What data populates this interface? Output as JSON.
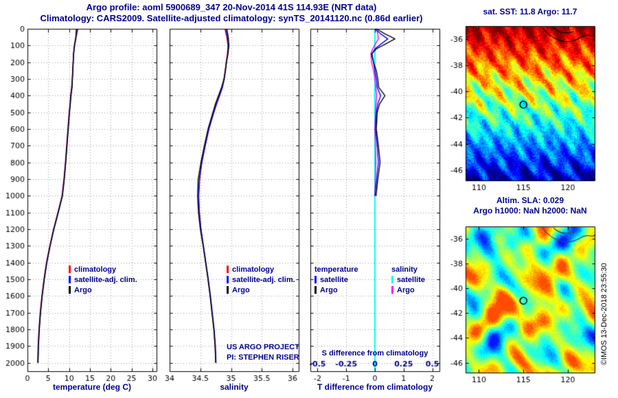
{
  "header": {
    "title_line1": "Argo profile: aoml 5900689_347 20-Nov-2014 41S 114.93E (NRT data)",
    "title_line2": "Climatology: CARS2009. Satellite-adjusted climatology: synTS_20141120.nc (0.86d earlier)"
  },
  "watermark": "©IMOS 13-Dec-2018 23:55:30",
  "colors": {
    "navy": "#00008b",
    "tick": "#000000",
    "background": "#ffffff"
  },
  "chart_data": [
    {
      "id": "temperature-profile",
      "type": "line",
      "xlabel": "temperature (deg C)",
      "xlim": [
        0,
        31
      ],
      "xticks": [
        0,
        5,
        10,
        15,
        20,
        25,
        30
      ],
      "ylim": [
        0,
        2050
      ],
      "yticks": [
        0,
        100,
        200,
        300,
        400,
        500,
        600,
        700,
        800,
        900,
        1000,
        1100,
        1200,
        1300,
        1400,
        1500,
        1600,
        1700,
        1800,
        1900,
        2000
      ],
      "grid": true,
      "depths": [
        0,
        50,
        100,
        150,
        200,
        250,
        300,
        350,
        400,
        450,
        500,
        600,
        700,
        800,
        900,
        1000,
        1100,
        1200,
        1300,
        1400,
        1500,
        1600,
        1700,
        1800,
        1900,
        2000
      ],
      "series": [
        {
          "name": "climatology",
          "color": "#ff0000",
          "values": [
            12.1,
            11.7,
            11.35,
            11.1,
            10.95,
            10.85,
            10.75,
            10.6,
            10.35,
            10.2,
            10.0,
            9.7,
            9.4,
            9.1,
            8.75,
            8.3,
            7.3,
            6.25,
            5.35,
            4.55,
            3.95,
            3.45,
            3.05,
            2.75,
            2.55,
            2.45
          ]
        },
        {
          "name": "satellite-adj. clim.",
          "color": "#0000ff",
          "values": [
            11.95,
            11.65,
            11.3,
            11.08,
            10.97,
            10.87,
            10.77,
            10.65,
            10.4,
            10.25,
            10.05,
            9.75,
            9.45,
            9.15,
            8.8,
            8.35,
            7.35,
            6.3,
            5.4,
            4.6,
            4.0,
            3.5,
            3.1,
            2.8,
            2.6,
            2.5
          ]
        },
        {
          "name": "Argo",
          "color": "#000000",
          "values": [
            11.75,
            11.6,
            11.25,
            11.05,
            11.0,
            10.9,
            10.8,
            10.72,
            10.45,
            10.3,
            10.1,
            9.8,
            9.5,
            9.2,
            8.85,
            8.4,
            7.4,
            6.35,
            5.45,
            4.65,
            4.05,
            3.55,
            3.15,
            2.85,
            2.65,
            2.55
          ]
        }
      ]
    },
    {
      "id": "salinity-profile",
      "type": "line",
      "xlabel": "salinity",
      "xlim": [
        34,
        36.1
      ],
      "xticks": [
        34,
        34.5,
        35,
        35.5,
        36
      ],
      "grid": true,
      "notes": [
        "US ARGO PROJECT",
        "PI: STEPHEN RISER"
      ],
      "series": [
        {
          "name": "climatology",
          "color": "#ff0000",
          "values": [
            34.9,
            34.93,
            34.95,
            34.94,
            34.92,
            34.905,
            34.885,
            34.855,
            34.805,
            34.755,
            34.715,
            34.635,
            34.575,
            34.52,
            34.49,
            34.475,
            34.485,
            34.51,
            34.55,
            34.59,
            34.625,
            34.66,
            34.69,
            34.72,
            34.74,
            34.75
          ]
        },
        {
          "name": "satellite-adj. clim.",
          "color": "#0000ff",
          "values": [
            34.91,
            34.94,
            34.955,
            34.945,
            34.925,
            34.91,
            34.89,
            34.86,
            34.815,
            34.765,
            34.72,
            34.64,
            34.58,
            34.525,
            34.485,
            34.47,
            34.48,
            34.51,
            34.55,
            34.59,
            34.63,
            34.665,
            34.695,
            34.725,
            34.745,
            34.755
          ]
        },
        {
          "name": "Argo",
          "color": "#000000",
          "values": [
            34.93,
            34.955,
            34.965,
            34.95,
            34.925,
            34.905,
            34.885,
            34.845,
            34.795,
            34.745,
            34.705,
            34.625,
            34.565,
            34.51,
            34.465,
            34.455,
            34.47,
            34.5,
            34.545,
            34.585,
            34.625,
            34.66,
            34.69,
            34.72,
            34.74,
            34.75
          ]
        }
      ]
    },
    {
      "id": "difference-profile",
      "type": "line",
      "xlabel": "T difference from climatology",
      "xlabel2": "S difference from climatology",
      "xlim": [
        -2.25,
        2.25
      ],
      "xticks": [
        -2,
        -1,
        0,
        1,
        2
      ],
      "s_xticks": [
        -0.5,
        -0.25,
        0,
        0.25,
        0.5
      ],
      "s_scale_factor": 4,
      "grid": true,
      "legend_headers": [
        "temperature",
        "salinity"
      ],
      "draw_order": [
        2,
        3,
        0,
        1
      ],
      "series": [
        {
          "name": "satellite",
          "group": "temperature",
          "color": "#0000ff",
          "axis": "T",
          "depths": [
            0,
            30,
            60,
            90,
            120,
            150,
            200,
            250,
            300,
            350,
            400,
            450,
            500,
            600,
            700,
            800,
            900,
            1000
          ],
          "values": [
            0.0,
            0.2,
            0.45,
            0.22,
            0.0,
            -0.1,
            -0.05,
            0.0,
            0.05,
            0.08,
            0.2,
            0.1,
            0.05,
            0.02,
            0.08,
            0.12,
            0.06,
            0.0
          ]
        },
        {
          "name": "Argo",
          "group": "temperature",
          "color": "#000000",
          "axis": "T",
          "depths": [
            0,
            30,
            60,
            90,
            120,
            150,
            200,
            250,
            300,
            350,
            400,
            450,
            500,
            600,
            700,
            800,
            900,
            1000
          ],
          "values": [
            0.05,
            0.35,
            0.7,
            0.38,
            0.05,
            -0.12,
            -0.05,
            0.05,
            0.1,
            0.13,
            0.35,
            0.16,
            0.08,
            0.05,
            0.12,
            0.18,
            0.1,
            0.04
          ]
        },
        {
          "name": "satellite",
          "group": "salinity",
          "color": "#00ffff",
          "axis": "S",
          "width": 2,
          "depths": [
            0,
            2050
          ],
          "values": [
            0,
            0
          ]
        },
        {
          "name": "Argo",
          "group": "salinity",
          "color": "#ff00ff",
          "axis": "S",
          "depths": [
            0,
            30,
            60,
            90,
            120,
            150,
            200,
            250,
            300,
            350,
            400,
            450,
            500,
            600,
            700,
            800,
            900,
            1000
          ],
          "values": [
            0.01,
            0.025,
            0.03,
            0.005,
            -0.02,
            -0.035,
            -0.03,
            -0.012,
            0.0,
            0.008,
            0.015,
            0.01,
            0.005,
            0.0,
            0.005,
            0.008,
            0.004,
            0.0
          ]
        }
      ]
    },
    {
      "id": "sst-map",
      "type": "heatmap",
      "title": "sat. SST: 11.8 Argo: 11.7",
      "xlim": [
        108.5,
        123
      ],
      "ylim": [
        -46.8,
        -35
      ],
      "xticks": [
        110,
        115,
        120
      ],
      "yticks": [
        -36,
        -38,
        -40,
        -42,
        -44,
        -46
      ],
      "marker": {
        "lon": 115,
        "lat": -41
      },
      "palette": "jet",
      "description": "satellite SST field: dark red (warm) in the north grading through orange, yellow, green, cyan to blue (cool) in the south, with mesoscale eddy speckle; float position circled"
    },
    {
      "id": "sla-map",
      "type": "heatmap",
      "title": "Altim. SLA: 0.029",
      "subtitle": "Argo h1000: NaN h2000: NaN",
      "xlim": [
        108.5,
        123
      ],
      "ylim": [
        -46.8,
        -35
      ],
      "xticks": [
        110,
        115,
        120
      ],
      "yticks": [
        -36,
        -38,
        -40,
        -42,
        -44,
        -46
      ],
      "marker": {
        "lon": 115,
        "lat": -41
      },
      "palette": "jet",
      "description": "altimetric sea level anomaly field: mostly green and yellow with scattered blue lows; float position circled"
    }
  ]
}
